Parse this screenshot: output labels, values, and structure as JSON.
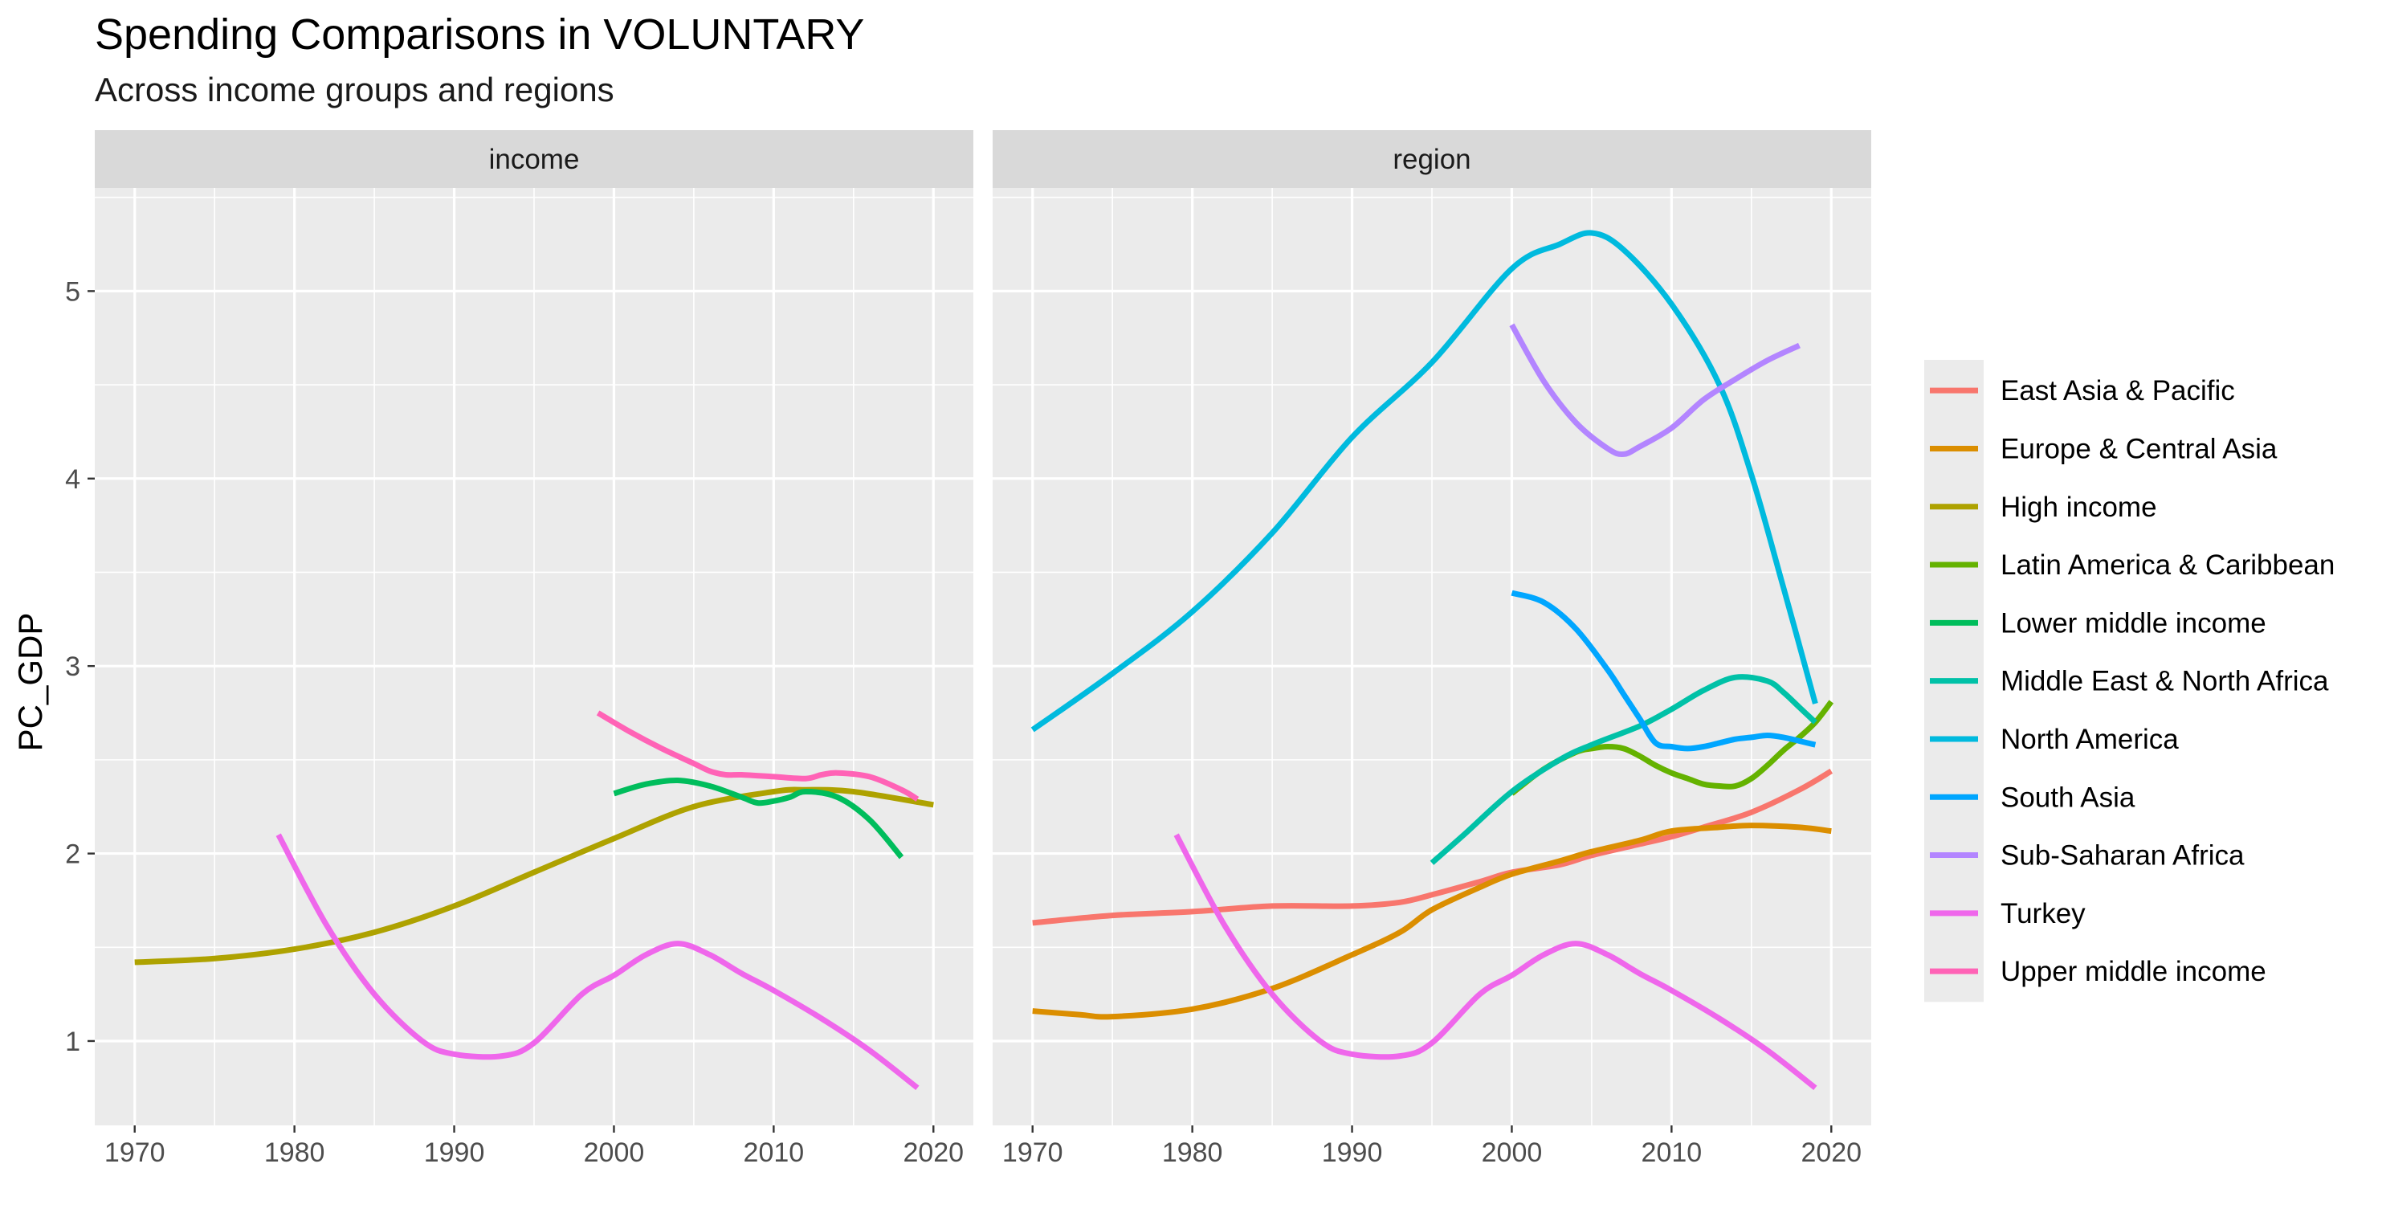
{
  "chart_data": {
    "type": "line",
    "title": "Spending Comparisons in VOLUNTARY",
    "subtitle": "Across income groups and regions",
    "xlabel": "",
    "ylabel": "PC_GDP",
    "xlim": [
      1967.5,
      2022.5
    ],
    "ylim": [
      0.55,
      5.55
    ],
    "x_ticks": [
      1970,
      1980,
      1990,
      2000,
      2010,
      2020
    ],
    "y_ticks": [
      1,
      2,
      3,
      4,
      5
    ],
    "grid": true,
    "legend_position": "right",
    "facets": [
      {
        "label": "income",
        "series": [
          {
            "name": "High income",
            "x": [
              1970,
              1975,
              1980,
              1985,
              1990,
              1995,
              2000,
              2005,
              2010,
              2012,
              2015,
              2020
            ],
            "y": [
              1.42,
              1.44,
              1.49,
              1.58,
              1.72,
              1.9,
              2.08,
              2.25,
              2.33,
              2.34,
              2.33,
              2.26
            ]
          },
          {
            "name": "Lower middle income",
            "x": [
              2000,
              2002,
              2004,
              2006,
              2008,
              2009,
              2010,
              2011,
              2012,
              2014,
              2016,
              2018
            ],
            "y": [
              2.32,
              2.37,
              2.39,
              2.36,
              2.3,
              2.27,
              2.28,
              2.3,
              2.33,
              2.3,
              2.18,
              1.98
            ]
          },
          {
            "name": "Turkey",
            "x": [
              1979,
              1982,
              1985,
              1988,
              1990,
              1993,
              1995,
              1998,
              2000,
              2002,
              2004,
              2006,
              2008,
              2010,
              2013,
              2016,
              2019
            ],
            "y": [
              2.1,
              1.62,
              1.25,
              1.0,
              0.93,
              0.92,
              0.99,
              1.25,
              1.35,
              1.46,
              1.52,
              1.46,
              1.36,
              1.27,
              1.12,
              0.95,
              0.75
            ]
          },
          {
            "name": "Upper middle income",
            "x": [
              1999,
              2001,
              2003,
              2005,
              2006,
              2007,
              2008,
              2010,
              2012,
              2013,
              2014,
              2016,
              2018,
              2019
            ],
            "y": [
              2.75,
              2.65,
              2.56,
              2.48,
              2.44,
              2.42,
              2.42,
              2.41,
              2.4,
              2.42,
              2.43,
              2.41,
              2.34,
              2.29
            ]
          }
        ]
      },
      {
        "label": "region",
        "series": [
          {
            "name": "East Asia & Pacific",
            "x": [
              1970,
              1975,
              1980,
              1985,
              1990,
              1993,
              1995,
              1998,
              2000,
              2003,
              2005,
              2008,
              2010,
              2012,
              2015,
              2018,
              2020
            ],
            "y": [
              1.63,
              1.67,
              1.69,
              1.72,
              1.72,
              1.74,
              1.78,
              1.85,
              1.9,
              1.94,
              1.99,
              2.05,
              2.09,
              2.14,
              2.22,
              2.34,
              2.44
            ]
          },
          {
            "name": "Europe & Central Asia",
            "x": [
              1970,
              1973,
              1975,
              1980,
              1985,
              1990,
              1993,
              1995,
              1998,
              2000,
              2003,
              2005,
              2008,
              2010,
              2013,
              2015,
              2018,
              2020
            ],
            "y": [
              1.16,
              1.14,
              1.13,
              1.17,
              1.28,
              1.46,
              1.58,
              1.7,
              1.82,
              1.89,
              1.96,
              2.01,
              2.07,
              2.12,
              2.14,
              2.15,
              2.14,
              2.12
            ]
          },
          {
            "name": "Latin America & Caribbean",
            "x": [
              2000,
              2002,
              2004,
              2005,
              2006,
              2007,
              2008,
              2009,
              2010,
              2011,
              2012,
              2013,
              2014,
              2015,
              2016,
              2017,
              2018,
              2019,
              2020
            ],
            "y": [
              2.32,
              2.45,
              2.54,
              2.56,
              2.57,
              2.56,
              2.52,
              2.47,
              2.43,
              2.4,
              2.37,
              2.36,
              2.36,
              2.4,
              2.47,
              2.55,
              2.62,
              2.7,
              2.81
            ]
          },
          {
            "name": "Middle East & North Africa",
            "x": [
              1995,
              1997,
              2000,
              2003,
              2005,
              2008,
              2010,
              2012,
              2014,
              2016,
              2017,
              2018,
              2019
            ],
            "y": [
              1.95,
              2.1,
              2.33,
              2.5,
              2.58,
              2.68,
              2.77,
              2.87,
              2.94,
              2.92,
              2.86,
              2.78,
              2.7
            ]
          },
          {
            "name": "North America",
            "x": [
              1970,
              1975,
              1980,
              1985,
              1990,
              1995,
              2000,
              2003,
              2005,
              2007,
              2010,
              2013,
              2015,
              2017,
              2019
            ],
            "y": [
              2.66,
              2.96,
              3.29,
              3.71,
              4.22,
              4.62,
              5.12,
              5.25,
              5.31,
              5.22,
              4.93,
              4.5,
              4.02,
              3.42,
              2.8
            ]
          },
          {
            "name": "South Asia",
            "x": [
              2000,
              2002,
              2004,
              2006,
              2007,
              2008,
              2009,
              2010,
              2011,
              2012,
              2013,
              2014,
              2015,
              2016,
              2017,
              2018,
              2019
            ],
            "y": [
              3.39,
              3.34,
              3.2,
              2.98,
              2.85,
              2.72,
              2.59,
              2.57,
              2.56,
              2.57,
              2.59,
              2.61,
              2.62,
              2.63,
              2.62,
              2.6,
              2.58
            ]
          },
          {
            "name": "Sub-Saharan Africa",
            "x": [
              2000,
              2002,
              2004,
              2006,
              2007,
              2008,
              2010,
              2012,
              2014,
              2016,
              2018
            ],
            "y": [
              4.82,
              4.52,
              4.3,
              4.16,
              4.13,
              4.17,
              4.27,
              4.42,
              4.53,
              4.63,
              4.71
            ]
          },
          {
            "name": "Turkey",
            "x": [
              1979,
              1982,
              1985,
              1988,
              1990,
              1993,
              1995,
              1998,
              2000,
              2002,
              2004,
              2006,
              2008,
              2010,
              2013,
              2016,
              2019
            ],
            "y": [
              2.1,
              1.62,
              1.25,
              1.0,
              0.93,
              0.92,
              0.99,
              1.25,
              1.35,
              1.46,
              1.52,
              1.46,
              1.36,
              1.27,
              1.12,
              0.95,
              0.75
            ]
          }
        ]
      }
    ],
    "legend": [
      {
        "name": "East Asia & Pacific",
        "color": "#F8766D"
      },
      {
        "name": "Europe & Central Asia",
        "color": "#DB8E00"
      },
      {
        "name": "High income",
        "color": "#AEA200"
      },
      {
        "name": "Latin America & Caribbean",
        "color": "#64B200"
      },
      {
        "name": "Lower middle income",
        "color": "#00BD5C"
      },
      {
        "name": "Middle East & North Africa",
        "color": "#00C1A7"
      },
      {
        "name": "North America",
        "color": "#00BADE"
      },
      {
        "name": "South Asia",
        "color": "#00A6FF"
      },
      {
        "name": "Sub-Saharan Africa",
        "color": "#B385FF"
      },
      {
        "name": "Turkey",
        "color": "#EF67EB"
      },
      {
        "name": "Upper middle income",
        "color": "#FF63B6"
      }
    ]
  }
}
